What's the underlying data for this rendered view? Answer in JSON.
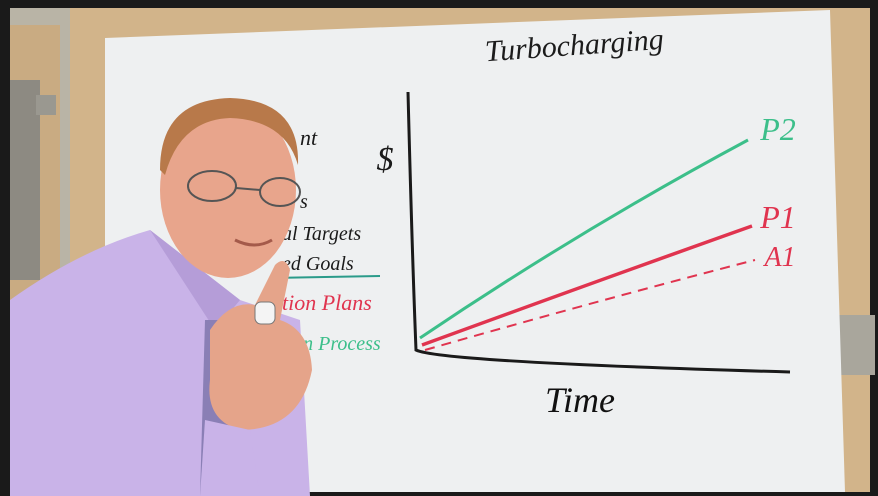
{
  "whiteboard": {
    "title": "Turbocharging",
    "y_axis_label": "$",
    "x_axis_label": "Time",
    "line_labels": [
      "P2",
      "P1",
      "A1"
    ],
    "list_items": [
      "nt",
      "s",
      "al Targets",
      "ed Goals",
      "tion Plans",
      "tion Process"
    ]
  }
}
